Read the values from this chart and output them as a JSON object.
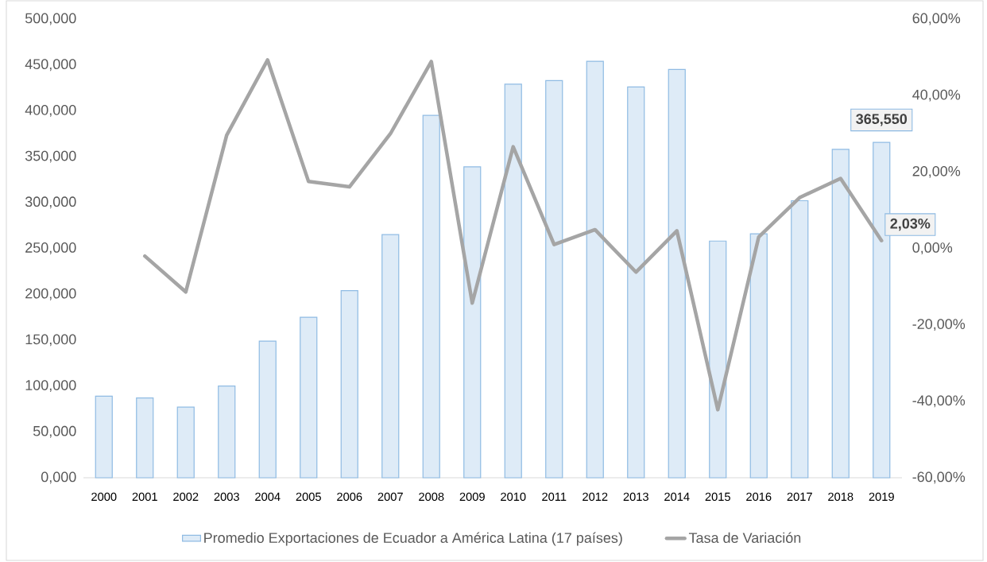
{
  "chart_data": {
    "type": "bar",
    "categories": [
      "2000",
      "2001",
      "2002",
      "2003",
      "2004",
      "2005",
      "2006",
      "2007",
      "2008",
      "2009",
      "2010",
      "2011",
      "2012",
      "2013",
      "2014",
      "2015",
      "2016",
      "2017",
      "2018",
      "2019"
    ],
    "series": [
      {
        "name": "Promedio Exportaciones de Ecuador a  América Latina (17 países)",
        "color": "#deebf7",
        "values": [
          89,
          87,
          77,
          100,
          149,
          175,
          204,
          265,
          395,
          339,
          429,
          433,
          454,
          426,
          445,
          258,
          266,
          302,
          358,
          365.55
        ],
        "value_labels": [
          null,
          null,
          null,
          null,
          null,
          null,
          null,
          null,
          null,
          null,
          null,
          null,
          null,
          null,
          null,
          null,
          null,
          null,
          null,
          "365,550"
        ]
      },
      {
        "name": "Tasa de Variación",
        "type": "line",
        "axis": "y2",
        "color": "#a5a5a5",
        "values": [
          null,
          -2.0,
          -11.4,
          29.6,
          49.3,
          17.5,
          16.1,
          30.0,
          48.9,
          -14.3,
          26.6,
          1.0,
          4.9,
          -6.2,
          4.6,
          -42.2,
          3.0,
          13.3,
          18.3,
          2.03
        ],
        "value_labels": [
          null,
          null,
          null,
          null,
          null,
          null,
          null,
          null,
          null,
          null,
          null,
          null,
          null,
          null,
          null,
          null,
          null,
          null,
          null,
          "2,03%"
        ]
      }
    ],
    "ylim": [
      0,
      500
    ],
    "yticks": [
      {
        "value": 0,
        "label": "0,000"
      },
      {
        "value": 50,
        "label": "50,000"
      },
      {
        "value": 100,
        "label": "100,000"
      },
      {
        "value": 150,
        "label": "150,000"
      },
      {
        "value": 200,
        "label": "200,000"
      },
      {
        "value": 250,
        "label": "250,000"
      },
      {
        "value": 300,
        "label": "300,000"
      },
      {
        "value": 350,
        "label": "350,000"
      },
      {
        "value": 400,
        "label": "400,000"
      },
      {
        "value": 450,
        "label": "450,000"
      },
      {
        "value": 500,
        "label": "500,000"
      }
    ],
    "y2lim": [
      -60,
      60
    ],
    "y2ticks": [
      {
        "value": -60,
        "label": "-60,00%"
      },
      {
        "value": -40,
        "label": "-40,00%"
      },
      {
        "value": -20,
        "label": "-20,00%"
      },
      {
        "value": 0,
        "label": "0,00%"
      },
      {
        "value": 20,
        "label": "20,00%"
      },
      {
        "value": 40,
        "label": "40,00%"
      },
      {
        "value": 60,
        "label": "60,00%"
      }
    ],
    "legend": "bottom",
    "marker": "none",
    "line_style": "solid"
  }
}
